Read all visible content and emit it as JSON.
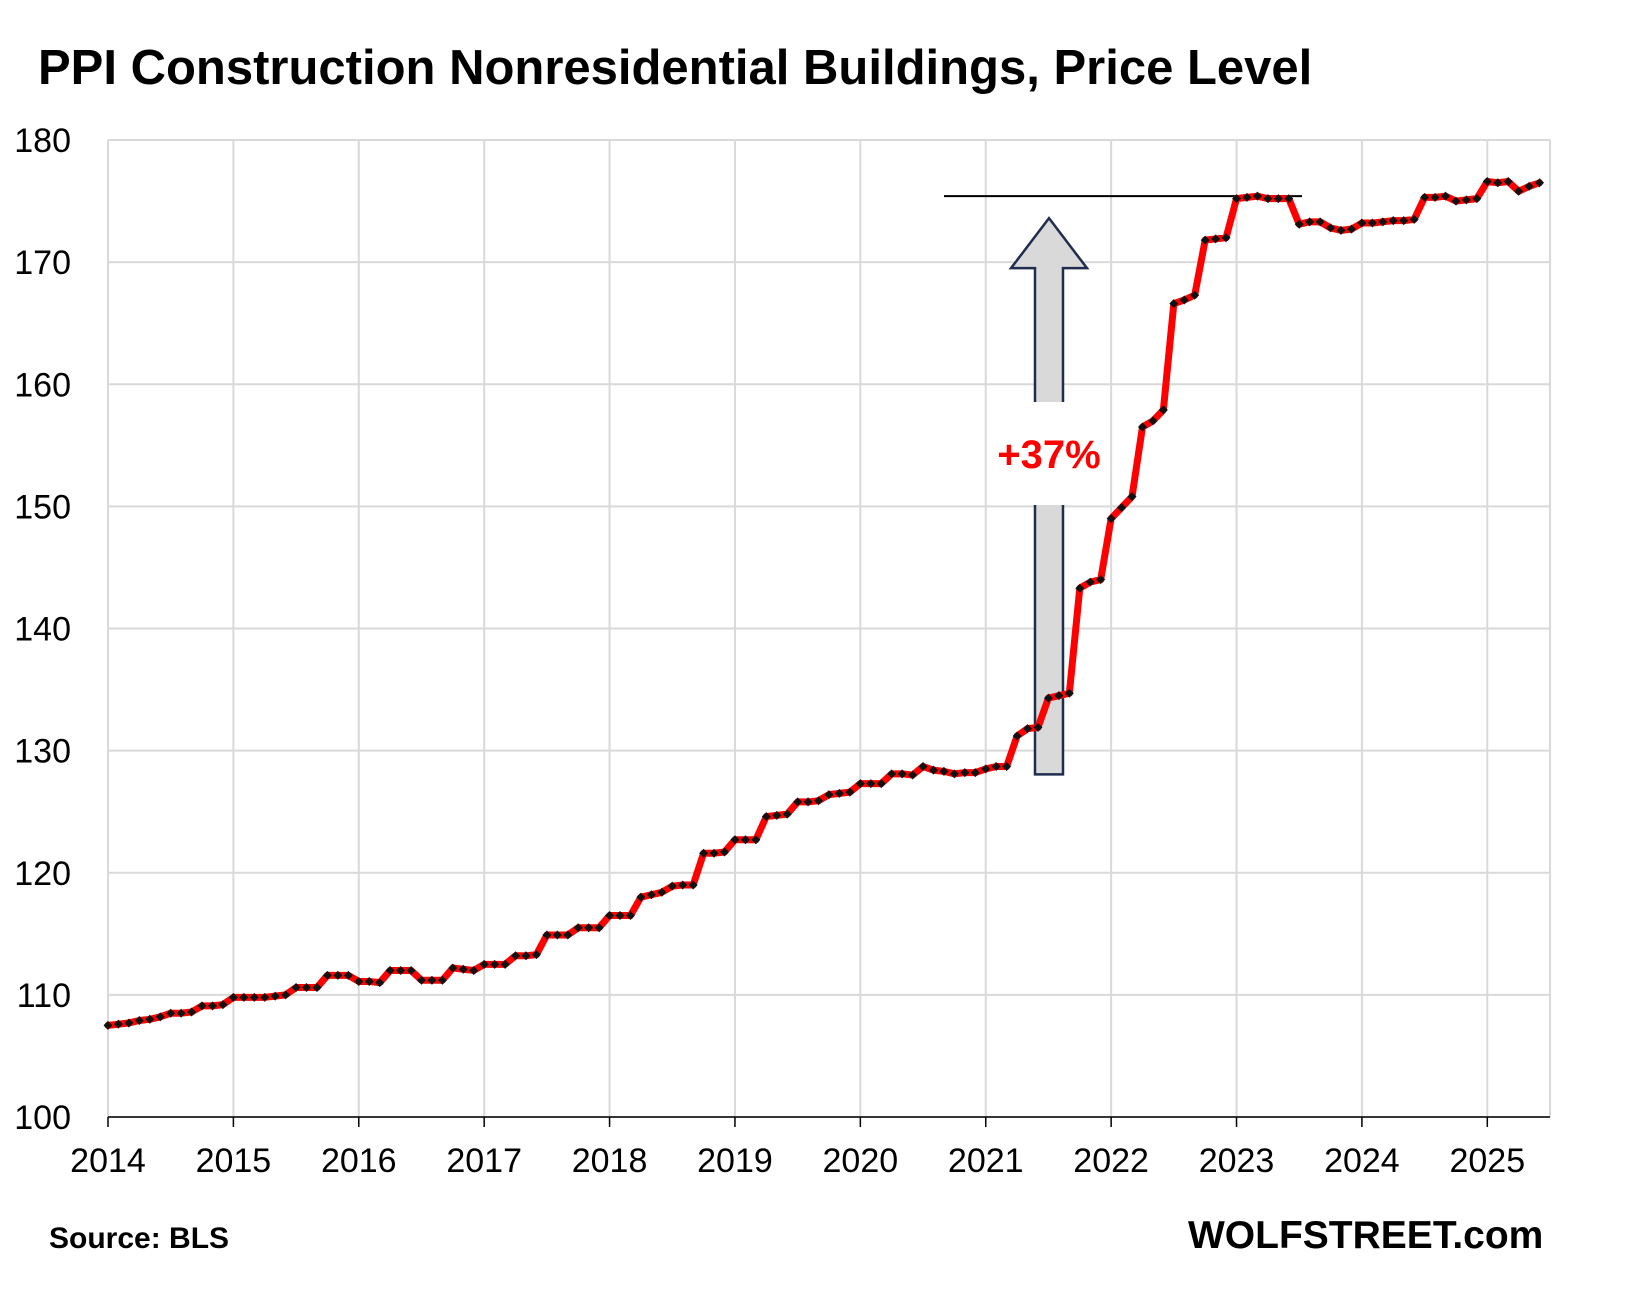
{
  "chart_data": {
    "type": "line",
    "title": "PPI Construction Nonresidential Buildings, Price Level",
    "source": "Source: BLS",
    "brand": "WOLFSTREET.com",
    "annotation": "+37%",
    "reference_level": 175.4,
    "ylim": [
      100,
      180
    ],
    "y_ticks": [
      100,
      110,
      120,
      130,
      140,
      150,
      160,
      170,
      180
    ],
    "x_range": [
      "2014-01",
      "2025-06"
    ],
    "x_tick_labels": [
      "2014",
      "2015",
      "2016",
      "2017",
      "2018",
      "2019",
      "2020",
      "2021",
      "2022",
      "2023",
      "2024",
      "2025"
    ],
    "grid": true,
    "colors": {
      "line": "#ff0000",
      "markers": "#111111",
      "grid": "#d9d9d9",
      "arrow_fill": "#d9d9d9",
      "arrow_stroke": "#1f2d4e"
    },
    "series": [
      {
        "x": [
          "2014-01",
          "2014-02",
          "2014-03",
          "2014-04",
          "2014-05",
          "2014-06",
          "2014-07",
          "2014-08",
          "2014-09",
          "2014-10",
          "2014-11",
          "2014-12",
          "2015-01",
          "2015-02",
          "2015-03",
          "2015-04",
          "2015-05",
          "2015-06",
          "2015-07",
          "2015-08",
          "2015-09",
          "2015-10",
          "2015-11",
          "2015-12",
          "2016-01",
          "2016-02",
          "2016-03",
          "2016-04",
          "2016-05",
          "2016-06",
          "2016-07",
          "2016-08",
          "2016-09",
          "2016-10",
          "2016-11",
          "2016-12",
          "2017-01",
          "2017-02",
          "2017-03",
          "2017-04",
          "2017-05",
          "2017-06",
          "2017-07",
          "2017-08",
          "2017-09",
          "2017-10",
          "2017-11",
          "2017-12",
          "2018-01",
          "2018-02",
          "2018-03",
          "2018-04",
          "2018-05",
          "2018-06",
          "2018-07",
          "2018-08",
          "2018-09",
          "2018-10",
          "2018-11",
          "2018-12",
          "2019-01",
          "2019-02",
          "2019-03",
          "2019-04",
          "2019-05",
          "2019-06",
          "2019-07",
          "2019-08",
          "2019-09",
          "2019-10",
          "2019-11",
          "2019-12",
          "2020-01",
          "2020-02",
          "2020-03",
          "2020-04",
          "2020-05",
          "2020-06",
          "2020-07",
          "2020-08",
          "2020-09",
          "2020-10",
          "2020-11",
          "2020-12",
          "2021-01",
          "2021-02",
          "2021-03",
          "2021-04",
          "2021-05",
          "2021-06",
          "2021-07",
          "2021-08",
          "2021-09",
          "2021-10",
          "2021-11",
          "2021-12",
          "2022-01",
          "2022-02",
          "2022-03",
          "2022-04",
          "2022-05",
          "2022-06",
          "2022-07",
          "2022-08",
          "2022-09",
          "2022-10",
          "2022-11",
          "2022-12",
          "2023-01",
          "2023-02",
          "2023-03",
          "2023-04",
          "2023-05",
          "2023-06",
          "2023-07",
          "2023-08",
          "2023-09",
          "2023-10",
          "2023-11",
          "2023-12",
          "2024-01",
          "2024-02",
          "2024-03",
          "2024-04",
          "2024-05",
          "2024-06",
          "2024-07",
          "2024-08",
          "2024-09",
          "2024-10",
          "2024-11",
          "2024-12",
          "2025-01",
          "2025-02",
          "2025-03",
          "2025-04",
          "2025-05",
          "2025-06"
        ],
        "values": [
          107.5,
          107.6,
          107.7,
          107.9,
          108.0,
          108.2,
          108.5,
          108.5,
          108.6,
          109.1,
          109.1,
          109.2,
          109.8,
          109.8,
          109.8,
          109.8,
          109.9,
          110.0,
          110.6,
          110.6,
          110.6,
          111.6,
          111.6,
          111.6,
          111.1,
          111.1,
          111.0,
          112.0,
          112.0,
          112.0,
          111.2,
          111.2,
          111.2,
          112.2,
          112.1,
          112.0,
          112.5,
          112.5,
          112.5,
          113.2,
          113.2,
          113.3,
          114.9,
          114.9,
          114.9,
          115.5,
          115.5,
          115.5,
          116.5,
          116.5,
          116.5,
          118.0,
          118.2,
          118.4,
          118.9,
          119.0,
          119.0,
          121.6,
          121.6,
          121.7,
          122.7,
          122.7,
          122.7,
          124.6,
          124.7,
          124.8,
          125.8,
          125.8,
          125.9,
          126.4,
          126.5,
          126.6,
          127.3,
          127.3,
          127.3,
          128.1,
          128.1,
          128.0,
          128.7,
          128.4,
          128.3,
          128.1,
          128.2,
          128.2,
          128.5,
          128.7,
          128.7,
          131.2,
          131.8,
          131.9,
          134.3,
          134.5,
          134.7,
          143.3,
          143.8,
          144.0,
          149.0,
          149.9,
          150.8,
          156.5,
          157.0,
          157.9,
          166.6,
          166.9,
          167.3,
          171.8,
          171.9,
          172.0,
          175.2,
          175.3,
          175.4,
          175.2,
          175.2,
          175.2,
          173.1,
          173.3,
          173.3,
          172.8,
          172.6,
          172.7,
          173.2,
          173.2,
          173.3,
          173.4,
          173.4,
          173.5,
          175.3,
          175.3,
          175.4,
          175.0,
          175.1,
          175.2,
          176.6,
          176.5,
          176.6,
          175.8,
          176.2,
          176.5
        ]
      }
    ]
  }
}
